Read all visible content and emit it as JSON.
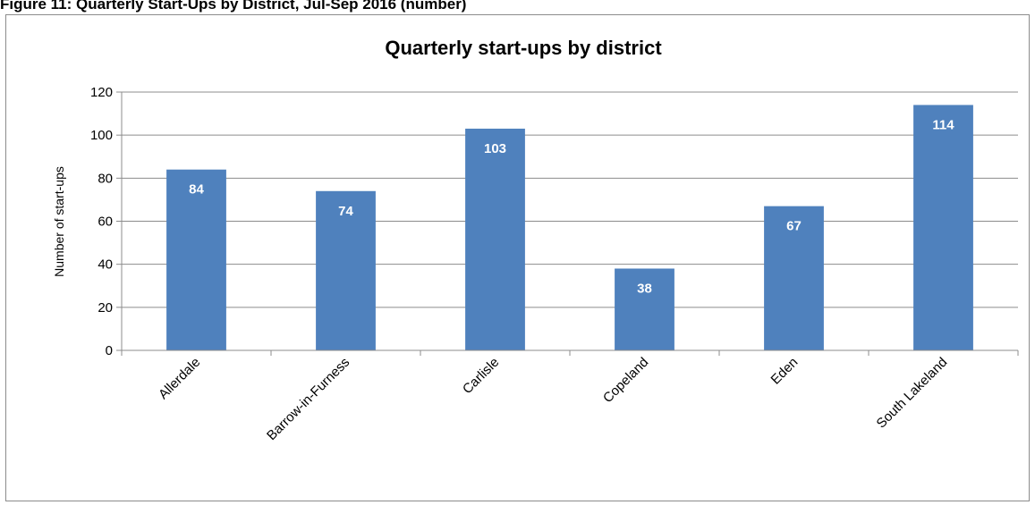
{
  "figure_caption": "Figure 11: Quarterly Start-Ups by District, Jul-Sep 2016 (number)",
  "chart_data": {
    "type": "bar",
    "title": "Quarterly start-ups by district",
    "xlabel": "",
    "ylabel": "Number of start-ups",
    "categories": [
      "Allerdale",
      "Barrow-in-Furness",
      "Carlisle",
      "Copeland",
      "Eden",
      "South Lakeland"
    ],
    "values": [
      84,
      74,
      103,
      38,
      67,
      114
    ],
    "data_labels": [
      "84",
      "74",
      "103",
      "38",
      "67",
      "114"
    ],
    "ylim": [
      0,
      120
    ],
    "yticks": [
      "0",
      "20",
      "40",
      "60",
      "80",
      "100",
      "120"
    ],
    "grid": true,
    "legend": "none",
    "colors": {
      "bar": "#4f81bd",
      "grid": "#8c8c8c",
      "axis": "#8c8c8c",
      "data_label": "#ffffff"
    }
  }
}
